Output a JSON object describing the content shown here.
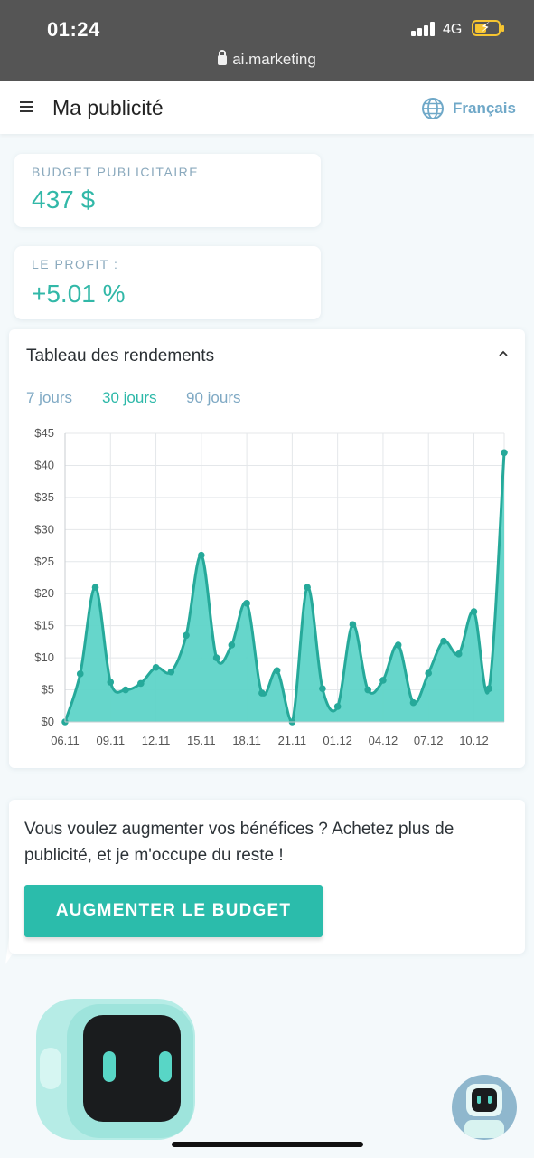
{
  "status_bar": {
    "time": "01:24",
    "network": "4G",
    "url": "ai.marketing"
  },
  "header": {
    "title": "Ma publicité",
    "language": "Français"
  },
  "budget_card": {
    "label": "BUDGET PUBLICITAIRE",
    "value": "437 $"
  },
  "profit_card": {
    "label": "LE PROFIT :",
    "value": "+5.01 %"
  },
  "chart_section": {
    "title": "Tableau des rendements",
    "tabs": [
      "7 jours",
      "30 jours",
      "90 jours"
    ],
    "active_tab": "30 jours"
  },
  "chart_data": {
    "type": "area",
    "y_tick_labels": [
      "$0",
      "$5",
      "$10",
      "$15",
      "$20",
      "$25",
      "$30",
      "$35",
      "$40",
      "$45"
    ],
    "y_ticks": [
      0,
      5,
      10,
      15,
      20,
      25,
      30,
      35,
      40,
      45
    ],
    "ylim": [
      0,
      45
    ],
    "x_tick_labels": [
      "06.11",
      "09.11",
      "12.11",
      "15.11",
      "18.11",
      "21.11",
      "01.12",
      "04.12",
      "07.12",
      "10.12"
    ],
    "x_tick_index": [
      0,
      3,
      6,
      9,
      12,
      15,
      18,
      21,
      24,
      27
    ],
    "values": [
      0,
      7.5,
      21,
      6.2,
      5,
      6,
      8.5,
      7.8,
      13.5,
      26,
      10,
      12,
      18.5,
      4.5,
      8,
      0,
      21,
      5.2,
      2.4,
      15.2,
      5,
      6.5,
      12,
      3,
      7.6,
      12.6,
      10.6,
      17.2,
      5.2,
      42
    ],
    "grid": true,
    "colors": {
      "line": "#26a99a",
      "fill": "#5ed4c8",
      "grid": "#e4e7ea"
    }
  },
  "promo": {
    "text": "Vous voulez augmenter vos bénéfices ? Achetez plus de publicité, et je m'occupe du reste !",
    "button_label": "AUGMENTER LE BUDGET"
  },
  "colors": {
    "accent": "#2bbcab",
    "label_blue": "#8aa9bd",
    "status_bar": "#555555"
  }
}
